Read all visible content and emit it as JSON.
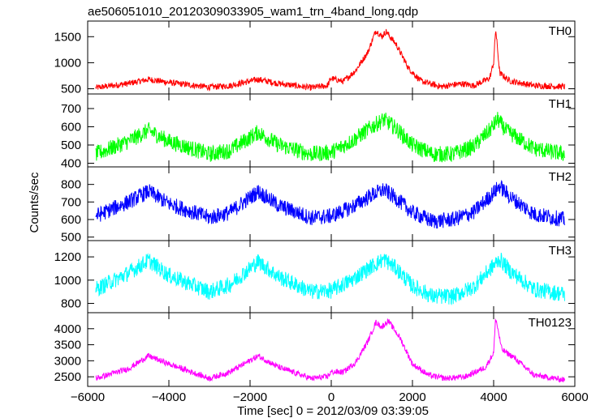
{
  "chart_data": {
    "type": "line",
    "title": "ae506051010_20120309033905_wam1_trn_4band_long.qdp",
    "xlabel": "Time [sec] 0 = 2012/03/09 03:39:05",
    "ylabel": "Counts/sec",
    "xlim": [
      -6000,
      6000
    ],
    "x_ticks": [
      -6000,
      -4000,
      -2000,
      0,
      2000,
      4000,
      6000
    ],
    "panels": [
      {
        "label": "TH0",
        "color": "#ff0000",
        "ylim": [
          400,
          1800
        ],
        "y_ticks": [
          500,
          1000,
          1500
        ],
        "x": [
          -5800,
          -5000,
          -4500,
          -4000,
          -3000,
          -2500,
          -1800,
          -1300,
          -500,
          -100,
          0,
          300,
          600,
          900,
          1100,
          1250,
          1350,
          1600,
          1900,
          2200,
          2700,
          3200,
          3500,
          3900,
          4000,
          4050,
          4150,
          4400,
          5000,
          5750
        ],
        "values": [
          520,
          600,
          680,
          620,
          530,
          560,
          680,
          600,
          520,
          560,
          700,
          640,
          850,
          1200,
          1620,
          1500,
          1600,
          1350,
          900,
          650,
          540,
          600,
          560,
          700,
          1000,
          1650,
          800,
          650,
          560,
          540
        ],
        "noise": 60
      },
      {
        "label": "TH1",
        "color": "#00ff00",
        "ylim": [
          380,
          780
        ],
        "y_ticks": [
          400,
          500,
          600,
          700
        ],
        "x": [
          -5800,
          -5000,
          -4500,
          -4000,
          -3000,
          -2500,
          -1800,
          -1300,
          -500,
          0,
          500,
          1000,
          1300,
          1600,
          2000,
          2500,
          3000,
          3500,
          3900,
          4100,
          4300,
          5000,
          5750
        ],
        "values": [
          450,
          520,
          580,
          520,
          450,
          470,
          570,
          500,
          450,
          460,
          520,
          600,
          640,
          590,
          500,
          450,
          450,
          490,
          580,
          640,
          580,
          480,
          450
        ],
        "noise": 45
      },
      {
        "label": "TH2",
        "color": "#0000ff",
        "ylim": [
          480,
          900
        ],
        "y_ticks": [
          500,
          600,
          700,
          800
        ],
        "x": [
          -5800,
          -5000,
          -4500,
          -4000,
          -3000,
          -2500,
          -1800,
          -1300,
          -500,
          0,
          500,
          1000,
          1300,
          1600,
          2000,
          2500,
          3000,
          3500,
          3900,
          4150,
          4400,
          5000,
          5750
        ],
        "values": [
          620,
          700,
          760,
          690,
          610,
          640,
          760,
          680,
          610,
          620,
          670,
          740,
          770,
          720,
          640,
          590,
          600,
          640,
          730,
          790,
          730,
          630,
          600
        ],
        "noise": 45
      },
      {
        "label": "TH3",
        "color": "#00ffff",
        "ylim": [
          720,
          1340
        ],
        "y_ticks": [
          800,
          1000,
          1200
        ],
        "x": [
          -5800,
          -5000,
          -4500,
          -4000,
          -3000,
          -2500,
          -1800,
          -1300,
          -500,
          0,
          500,
          1000,
          1300,
          1600,
          2000,
          2500,
          3000,
          3500,
          3900,
          4150,
          4400,
          5000,
          5750
        ],
        "values": [
          920,
          1060,
          1170,
          1040,
          900,
          960,
          1160,
          1030,
          900,
          910,
          1000,
          1120,
          1180,
          1100,
          950,
          860,
          860,
          940,
          1090,
          1180,
          1080,
          920,
          880
        ],
        "noise": 70
      },
      {
        "label": "TH0123",
        "color": "#ff00ff",
        "ylim": [
          2200,
          4500
        ],
        "y_ticks": [
          2500,
          3000,
          3500,
          4000
        ],
        "x": [
          -5800,
          -5000,
          -4500,
          -4000,
          -3000,
          -2500,
          -1800,
          -1300,
          -500,
          -100,
          0,
          300,
          600,
          900,
          1100,
          1250,
          1400,
          1700,
          2000,
          2400,
          2800,
          3300,
          3800,
          4000,
          4050,
          4200,
          4500,
          5000,
          5750
        ],
        "values": [
          2450,
          2750,
          3150,
          2900,
          2450,
          2650,
          3150,
          2800,
          2450,
          2500,
          2650,
          2650,
          2950,
          3600,
          4200,
          4050,
          4250,
          3700,
          2900,
          2550,
          2450,
          2500,
          2800,
          3250,
          4350,
          3350,
          3100,
          2550,
          2400
        ],
        "noise": 90
      }
    ]
  }
}
